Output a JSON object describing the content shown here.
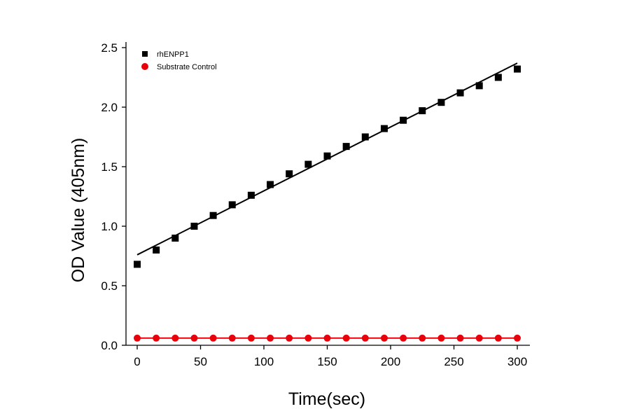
{
  "chart_data": {
    "type": "scatter",
    "xlabel": "Time(sec)",
    "ylabel": "OD Value (405nm)",
    "xlim": [
      0,
      300
    ],
    "ylim": [
      0,
      2.5
    ],
    "xticks": [
      "0",
      "50",
      "100",
      "150",
      "200",
      "250",
      "300"
    ],
    "yticks": [
      "0.0",
      "0.5",
      "1.0",
      "1.5",
      "2.0",
      "2.5"
    ],
    "grid": false,
    "legend_position": "top-left",
    "x": [
      0,
      15,
      30,
      45,
      60,
      75,
      90,
      105,
      120,
      135,
      150,
      165,
      180,
      195,
      210,
      225,
      240,
      255,
      270,
      285,
      300
    ],
    "series": [
      {
        "name": "rhENPP1",
        "marker": "square",
        "color": "#000000",
        "values": [
          0.68,
          0.8,
          0.9,
          1.0,
          1.09,
          1.18,
          1.26,
          1.35,
          1.44,
          1.52,
          1.59,
          1.67,
          1.75,
          1.82,
          1.89,
          1.97,
          2.04,
          2.12,
          2.18,
          2.25,
          2.32
        ],
        "fit_line": {
          "x": [
            0,
            300
          ],
          "y": [
            0.76,
            2.37
          ]
        }
      },
      {
        "name": "Substrate Control",
        "marker": "circle",
        "color": "#e8000b",
        "values": [
          0.06,
          0.06,
          0.06,
          0.06,
          0.06,
          0.06,
          0.06,
          0.06,
          0.06,
          0.06,
          0.06,
          0.06,
          0.06,
          0.06,
          0.06,
          0.06,
          0.06,
          0.06,
          0.06,
          0.06,
          0.06
        ],
        "fit_line": {
          "x": [
            0,
            300
          ],
          "y": [
            0.06,
            0.06
          ]
        }
      }
    ]
  }
}
